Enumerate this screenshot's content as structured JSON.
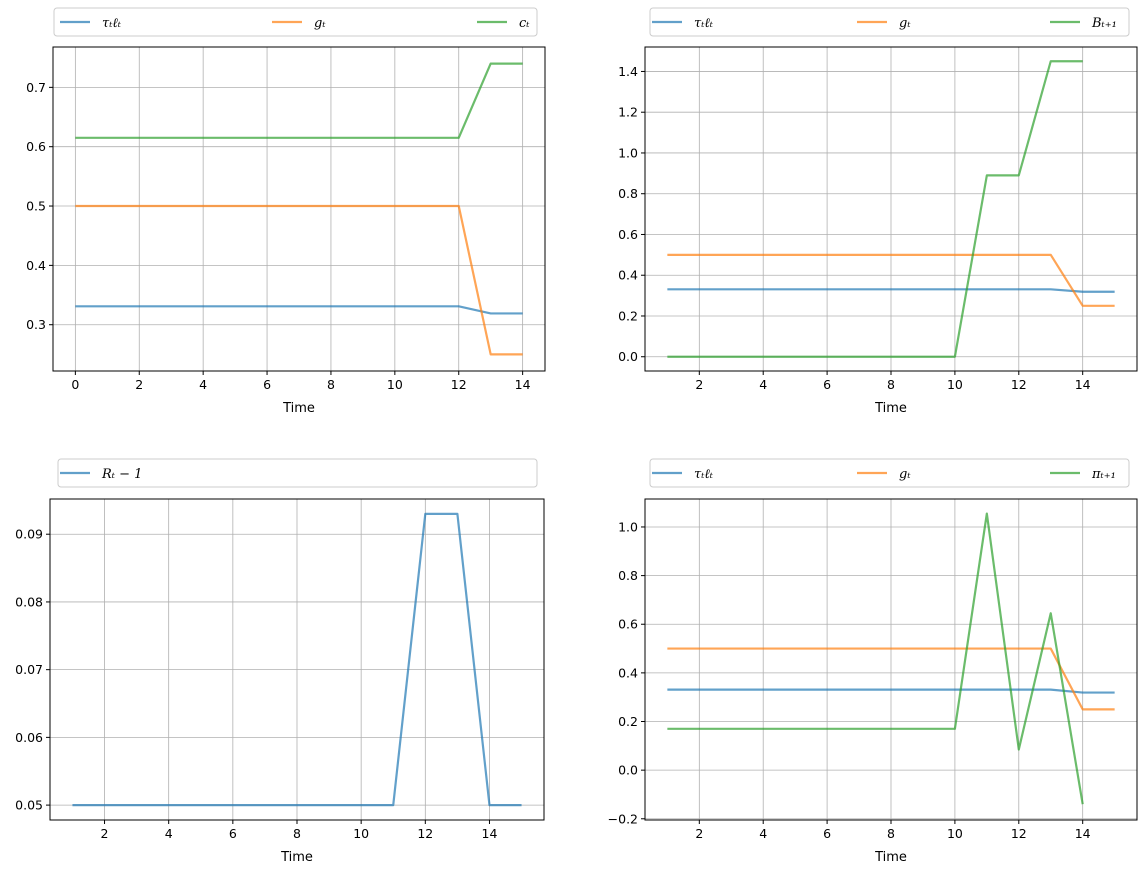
{
  "chart_data": [
    {
      "type": "line",
      "xlabel": "Time",
      "xlim": [
        -0.7,
        14.7
      ],
      "ylim": [
        0.222,
        0.768
      ],
      "xticks": [
        "0",
        "2",
        "4",
        "6",
        "8",
        "10",
        "12",
        "14"
      ],
      "yticks": [
        "0.3",
        "0.4",
        "0.5",
        "0.6",
        "0.7"
      ],
      "grid": true,
      "legend_position": "above",
      "series": [
        {
          "name": "τₜℓₜ",
          "color": "#1f77b4",
          "x": [
            0,
            1,
            2,
            3,
            4,
            5,
            6,
            7,
            8,
            9,
            10,
            11,
            12,
            13,
            14
          ],
          "y": [
            0.331,
            0.331,
            0.331,
            0.331,
            0.331,
            0.331,
            0.331,
            0.331,
            0.331,
            0.331,
            0.331,
            0.331,
            0.331,
            0.319,
            0.319
          ]
        },
        {
          "name": "gₜ",
          "color": "#ff7f0e",
          "x": [
            0,
            1,
            2,
            3,
            4,
            5,
            6,
            7,
            8,
            9,
            10,
            11,
            12,
            13,
            14
          ],
          "y": [
            0.5,
            0.5,
            0.5,
            0.5,
            0.5,
            0.5,
            0.5,
            0.5,
            0.5,
            0.5,
            0.5,
            0.5,
            0.5,
            0.25,
            0.25
          ]
        },
        {
          "name": "cₜ",
          "color": "#2ca02c",
          "x": [
            0,
            1,
            2,
            3,
            4,
            5,
            6,
            7,
            8,
            9,
            10,
            11,
            12,
            13,
            14
          ],
          "y": [
            0.615,
            0.615,
            0.615,
            0.615,
            0.615,
            0.615,
            0.615,
            0.615,
            0.615,
            0.615,
            0.615,
            0.615,
            0.615,
            0.74,
            0.74
          ]
        }
      ]
    },
    {
      "type": "line",
      "xlabel": "Time",
      "xlim": [
        0.3,
        15.7
      ],
      "ylim": [
        -0.07,
        1.52
      ],
      "xticks": [
        "2",
        "4",
        "6",
        "8",
        "10",
        "12",
        "14"
      ],
      "yticks": [
        "0.0",
        "0.2",
        "0.4",
        "0.6",
        "0.8",
        "1.0",
        "1.2",
        "1.4"
      ],
      "grid": true,
      "legend_position": "above",
      "series": [
        {
          "name": "τₜℓₜ",
          "color": "#1f77b4",
          "x": [
            1,
            2,
            3,
            4,
            5,
            6,
            7,
            8,
            9,
            10,
            11,
            12,
            13,
            14,
            15
          ],
          "y": [
            0.331,
            0.331,
            0.331,
            0.331,
            0.331,
            0.331,
            0.331,
            0.331,
            0.331,
            0.331,
            0.331,
            0.331,
            0.331,
            0.319,
            0.319
          ]
        },
        {
          "name": "gₜ",
          "color": "#ff7f0e",
          "x": [
            1,
            2,
            3,
            4,
            5,
            6,
            7,
            8,
            9,
            10,
            11,
            12,
            13,
            14,
            15
          ],
          "y": [
            0.5,
            0.5,
            0.5,
            0.5,
            0.5,
            0.5,
            0.5,
            0.5,
            0.5,
            0.5,
            0.5,
            0.5,
            0.5,
            0.25,
            0.25
          ]
        },
        {
          "name": "Bₜ₊₁",
          "color": "#2ca02c",
          "x": [
            1,
            2,
            3,
            4,
            5,
            6,
            7,
            8,
            9,
            10,
            11,
            12,
            13,
            14
          ],
          "y": [
            0,
            0,
            0,
            0,
            0,
            0,
            0,
            0,
            0,
            0,
            0.89,
            0.89,
            1.45,
            1.45
          ]
        }
      ]
    },
    {
      "type": "line",
      "xlabel": "Time",
      "xlim": [
        0.3,
        15.7
      ],
      "ylim": [
        0.0478,
        0.0952
      ],
      "xticks": [
        "2",
        "4",
        "6",
        "8",
        "10",
        "12",
        "14"
      ],
      "yticks": [
        "0.05",
        "0.06",
        "0.07",
        "0.08",
        "0.09"
      ],
      "grid": true,
      "legend_position": "above",
      "series": [
        {
          "name": "Rₜ − 1",
          "color": "#1f77b4",
          "x": [
            1,
            2,
            3,
            4,
            5,
            6,
            7,
            8,
            9,
            10,
            11,
            12,
            13,
            14,
            15
          ],
          "y": [
            0.05,
            0.05,
            0.05,
            0.05,
            0.05,
            0.05,
            0.05,
            0.05,
            0.05,
            0.05,
            0.05,
            0.093,
            0.093,
            0.05,
            0.05
          ]
        }
      ]
    },
    {
      "type": "line",
      "xlabel": "Time",
      "xlim": [
        0.3,
        15.7
      ],
      "ylim": [
        -0.205,
        1.115
      ],
      "xticks": [
        "2",
        "4",
        "6",
        "8",
        "10",
        "12",
        "14"
      ],
      "yticks": [
        "−0.2",
        "0.0",
        "0.2",
        "0.4",
        "0.6",
        "0.8",
        "1.0"
      ],
      "grid": true,
      "legend_position": "above",
      "series": [
        {
          "name": "τₜℓₜ",
          "color": "#1f77b4",
          "x": [
            1,
            2,
            3,
            4,
            5,
            6,
            7,
            8,
            9,
            10,
            11,
            12,
            13,
            14,
            15
          ],
          "y": [
            0.331,
            0.331,
            0.331,
            0.331,
            0.331,
            0.331,
            0.331,
            0.331,
            0.331,
            0.331,
            0.331,
            0.331,
            0.331,
            0.319,
            0.319
          ]
        },
        {
          "name": "gₜ",
          "color": "#ff7f0e",
          "x": [
            1,
            2,
            3,
            4,
            5,
            6,
            7,
            8,
            9,
            10,
            11,
            12,
            13,
            14,
            15
          ],
          "y": [
            0.5,
            0.5,
            0.5,
            0.5,
            0.5,
            0.5,
            0.5,
            0.5,
            0.5,
            0.5,
            0.5,
            0.5,
            0.5,
            0.25,
            0.25
          ]
        },
        {
          "name": "πₜ₊₁",
          "color": "#2ca02c",
          "x": [
            1,
            2,
            3,
            4,
            5,
            6,
            7,
            8,
            9,
            10,
            11,
            12,
            13,
            14
          ],
          "y": [
            0.17,
            0.17,
            0.17,
            0.17,
            0.17,
            0.17,
            0.17,
            0.17,
            0.17,
            0.17,
            1.055,
            0.085,
            0.645,
            -0.14
          ]
        }
      ]
    }
  ]
}
